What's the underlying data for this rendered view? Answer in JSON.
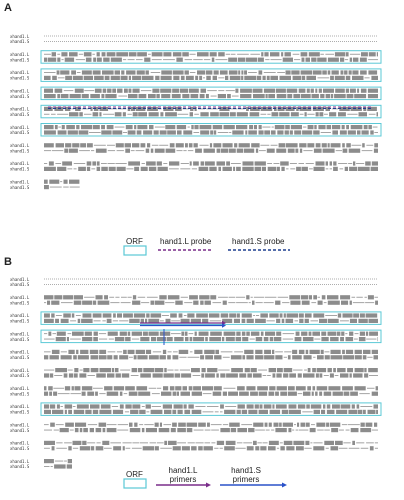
{
  "panels": [
    {
      "label": "A",
      "sequences": [
        "xhand1.L",
        "xhand1.S"
      ],
      "legend": {
        "orf_label": "ORF",
        "item1_label": "hand1.L probe",
        "item2_label": "hand1.S probe"
      },
      "colors": {
        "orf": "#5bc8d6",
        "item1": "#7a2d8a",
        "item2": "#1f3f8f"
      }
    },
    {
      "label": "B",
      "sequences": [
        "xhand1.L",
        "xhand1.S"
      ],
      "legend": {
        "orf_label": "ORF",
        "item1_label": "hand1.L primers",
        "item2_label": "hand1.S primers"
      },
      "colors": {
        "orf": "#5bc8d6",
        "item1": "#7a2d8a",
        "item2": "#2a52c9"
      }
    }
  ],
  "colors": {
    "alignment_block": "#8c8c8c",
    "gap": "#ffffff"
  }
}
